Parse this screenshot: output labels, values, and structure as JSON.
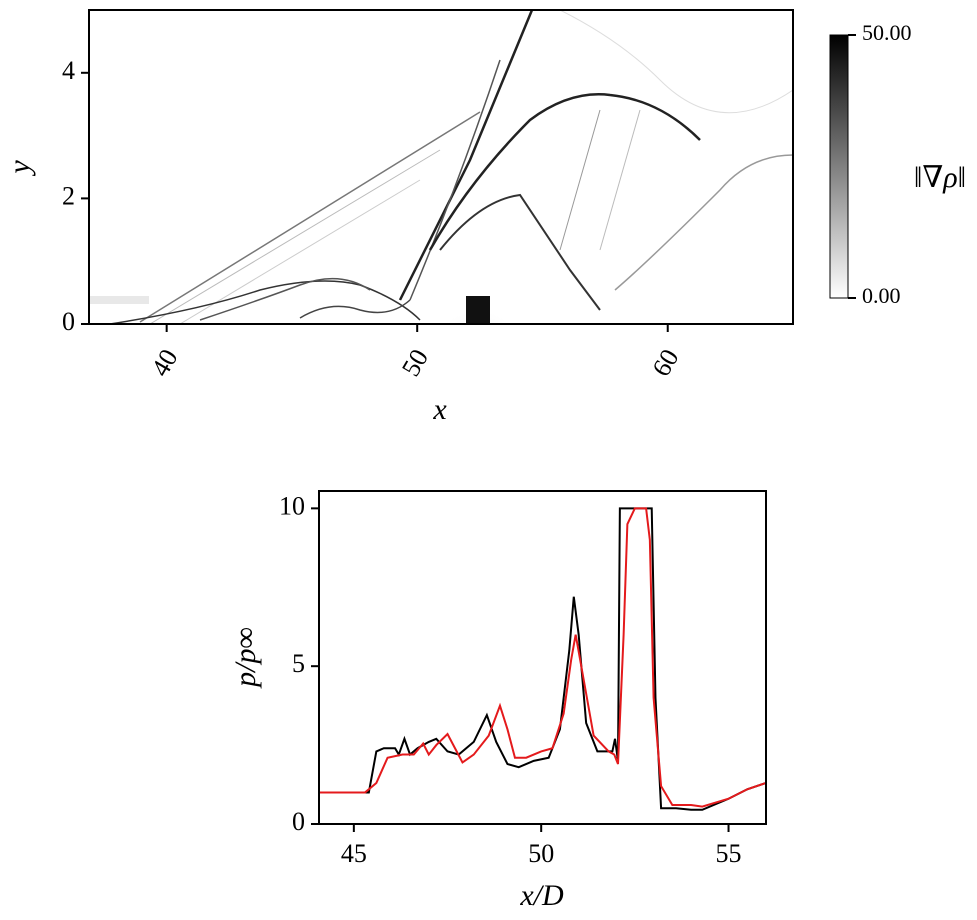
{
  "chart_data": [
    {
      "type": "heatmap",
      "xlabel": "x",
      "ylabel": "y",
      "xlim": [
        36.9,
        65.0
      ],
      "ylim": [
        0,
        5
      ],
      "xticks": [
        40,
        50,
        60
      ],
      "yticks": [
        0,
        2,
        4
      ],
      "colorbar": {
        "label": "‖∇ρ‖",
        "lim": [
          0,
          50
        ],
        "ticks": [
          {
            "value": 0,
            "label": "0.00"
          },
          {
            "value": 50,
            "label": "50.00"
          }
        ]
      }
    },
    {
      "type": "line",
      "xlabel": "x/D",
      "ylabel": "p/p∞",
      "xlim": [
        44.07,
        56
      ],
      "ylim": [
        0,
        10.55
      ],
      "xticks": [
        45,
        50,
        55
      ],
      "yticks": [
        0,
        5,
        10
      ],
      "series": [
        {
          "color": "#000000",
          "x": [
            44.07,
            45.4,
            45.6,
            45.8,
            46.1,
            46.2,
            46.35,
            46.5,
            46.7,
            47.0,
            47.2,
            47.5,
            47.8,
            48.2,
            48.55,
            48.8,
            49.1,
            49.4,
            49.8,
            50.2,
            50.5,
            50.75,
            50.87,
            51.0,
            51.2,
            51.5,
            51.9,
            51.97,
            52.05,
            52.1,
            52.8,
            52.95,
            53.05,
            53.2,
            53.6,
            54.0,
            54.3,
            55.0,
            55.5,
            56
          ],
          "values": [
            1,
            1.0,
            2.3,
            2.4,
            2.4,
            2.2,
            2.7,
            2.2,
            2.4,
            2.6,
            2.7,
            2.3,
            2.2,
            2.6,
            3.45,
            2.6,
            1.9,
            1.8,
            2.0,
            2.1,
            3.0,
            5.5,
            7.2,
            6.0,
            3.2,
            2.3,
            2.3,
            2.7,
            2.0,
            10,
            10,
            10,
            4,
            0.5,
            0.5,
            0.45,
            0.45,
            0.8,
            1.1,
            1.3
          ]
        },
        {
          "color": "#e41a1c",
          "x": [
            44.07,
            45.3,
            45.6,
            45.9,
            46.3,
            46.6,
            46.85,
            47.0,
            47.2,
            47.5,
            47.7,
            47.9,
            48.2,
            48.6,
            48.9,
            49.1,
            49.3,
            49.6,
            50.0,
            50.3,
            50.6,
            50.8,
            50.92,
            51.1,
            51.4,
            51.8,
            51.95,
            52.05,
            52.2,
            52.3,
            52.5,
            52.8,
            52.9,
            53.0,
            53.2,
            53.5,
            54.0,
            54.3,
            55.0,
            55.5,
            56
          ],
          "values": [
            1,
            1.0,
            1.3,
            2.1,
            2.2,
            2.2,
            2.55,
            2.2,
            2.5,
            2.85,
            2.4,
            1.95,
            2.2,
            2.8,
            3.75,
            3.0,
            2.1,
            2.1,
            2.3,
            2.4,
            3.5,
            5.2,
            6.0,
            4.8,
            2.8,
            2.3,
            2.2,
            1.9,
            6,
            9.5,
            10,
            10,
            9.0,
            4,
            1.2,
            0.6,
            0.6,
            0.55,
            0.8,
            1.1,
            1.3
          ]
        }
      ]
    }
  ]
}
